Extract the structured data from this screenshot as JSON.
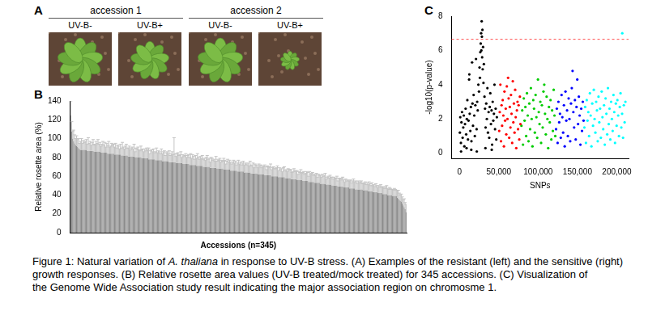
{
  "panel_a": {
    "title": "A",
    "groups": [
      {
        "label": "accession 1",
        "conditions": [
          "UV-B-",
          "UV-B+"
        ]
      },
      {
        "label": "accession 2",
        "conditions": [
          "UV-B-",
          "UV-B+"
        ]
      }
    ]
  },
  "chart_data": [
    {
      "type": "bar",
      "title": "B",
      "xlabel": "Accessions (n=345)",
      "ylabel": "Relative rosette area (%)",
      "color": "#8a8a8a",
      "grid": false,
      "tick_labels": "y",
      "ylim": [
        0,
        140
      ],
      "yticks": [
        0,
        20,
        40,
        60,
        80,
        100,
        120,
        140
      ],
      "values": [
        125,
        108,
        100,
        97,
        95,
        93,
        92,
        91,
        90,
        89,
        88,
        88,
        88,
        88,
        88,
        88,
        88,
        87,
        87,
        87,
        87,
        87,
        87,
        87,
        86,
        86,
        86,
        86,
        86,
        86,
        86,
        85,
        85,
        85,
        85,
        85,
        85,
        85,
        84,
        84,
        84,
        84,
        84,
        84,
        84,
        83,
        83,
        83,
        83,
        83,
        83,
        83,
        82,
        82,
        82,
        82,
        82,
        82,
        82,
        81,
        81,
        81,
        81,
        81,
        81,
        81,
        80,
        80,
        80,
        80,
        80,
        80,
        80,
        79,
        79,
        79,
        79,
        79,
        79,
        79,
        78,
        78,
        78,
        78,
        78,
        78,
        78,
        77,
        77,
        77,
        77,
        77,
        77,
        77,
        76,
        76,
        76,
        76,
        76,
        76,
        76,
        75,
        75,
        75,
        75,
        75,
        75,
        75,
        74,
        74,
        74,
        74,
        74,
        74,
        74,
        73,
        73,
        73,
        73,
        73,
        73,
        73,
        72,
        72,
        72,
        72,
        72,
        72,
        72,
        71,
        71,
        71,
        71,
        71,
        71,
        71,
        70,
        70,
        70,
        70,
        70,
        70,
        70,
        69,
        69,
        69,
        69,
        69,
        69,
        69,
        68,
        68,
        68,
        68,
        68,
        68,
        68,
        67,
        67,
        67,
        67,
        67,
        67,
        67,
        66,
        66,
        66,
        66,
        66,
        66,
        66,
        65,
        65,
        65,
        65,
        65,
        65,
        65,
        64,
        64,
        64,
        64,
        64,
        64,
        64,
        63,
        63,
        63,
        63,
        63,
        63,
        63,
        62,
        62,
        62,
        62,
        62,
        62,
        62,
        61,
        61,
        61,
        61,
        61,
        61,
        61,
        60,
        60,
        60,
        60,
        60,
        60,
        60,
        59,
        59,
        59,
        59,
        59,
        59,
        59,
        58,
        58,
        58,
        58,
        58,
        58,
        57,
        57,
        57,
        57,
        57,
        57,
        56,
        56,
        56,
        56,
        56,
        56,
        55,
        55,
        55,
        55,
        55,
        55,
        54,
        54,
        54,
        54,
        54,
        54,
        53,
        53,
        53,
        53,
        53,
        53,
        52,
        52,
        52,
        52,
        52,
        52,
        51,
        51,
        51,
        51,
        51,
        51,
        50,
        50,
        50,
        50,
        50,
        50,
        49,
        49,
        49,
        49,
        49,
        49,
        48,
        48,
        48,
        48,
        48,
        48,
        47,
        47,
        47,
        47,
        47,
        47,
        46,
        46,
        46,
        46,
        46,
        46,
        46,
        46,
        45,
        45,
        45,
        45,
        45,
        44,
        44,
        44,
        44,
        44,
        43,
        43,
        43,
        43,
        43,
        42,
        42,
        42,
        42,
        42,
        41,
        41,
        41,
        41,
        41,
        40,
        40,
        40,
        40,
        40,
        39,
        39,
        39,
        39,
        39,
        37,
        36,
        35,
        34,
        33,
        31,
        29,
        27,
        25,
        22
      ],
      "errors": [
        15,
        10,
        8,
        12,
        9,
        7,
        11,
        8,
        10,
        6,
        9,
        12,
        7,
        10,
        8,
        9,
        11,
        7,
        14,
        8,
        10,
        6,
        9,
        12,
        8,
        7,
        11,
        9,
        13,
        8,
        10,
        7,
        9,
        12,
        8,
        11,
        6,
        10,
        9,
        13,
        7,
        8,
        11,
        9,
        10,
        8,
        12,
        7,
        10,
        9,
        6,
        11,
        8,
        14,
        9,
        7,
        10,
        12,
        8,
        9,
        11,
        7,
        9,
        10,
        8,
        13,
        6,
        10,
        9,
        11,
        8,
        7,
        12,
        9,
        10,
        7,
        10,
        8,
        11,
        9,
        12,
        6,
        9,
        10,
        8,
        11,
        7,
        9,
        13,
        8,
        10,
        9,
        7,
        12,
        8,
        10,
        11,
        6,
        9,
        10,
        8,
        12,
        7,
        9,
        11,
        8,
        26,
        9,
        7,
        10,
        11,
        8,
        9,
        12,
        6,
        10,
        8,
        9,
        11,
        7,
        9,
        10,
        8,
        12,
        7,
        11,
        9,
        6,
        10,
        8,
        13,
        9,
        7,
        10,
        8,
        11,
        8,
        9,
        7,
        10,
        12,
        8,
        9,
        6,
        11,
        10,
        8,
        9,
        7,
        12,
        8,
        10,
        9,
        11,
        7,
        9,
        8,
        12,
        10,
        6,
        9,
        11,
        8,
        10,
        9,
        7,
        9,
        11,
        8,
        10,
        6,
        9,
        12,
        8,
        10,
        7,
        9,
        11,
        8,
        10,
        9,
        8,
        10,
        7,
        12,
        9,
        8,
        11,
        6,
        10,
        9,
        8,
        7,
        11,
        9,
        10,
        7,
        9,
        8,
        11,
        9,
        6,
        10,
        8,
        9,
        12,
        7,
        9,
        10,
        8,
        8,
        9,
        11,
        7,
        10,
        8,
        9,
        6,
        10,
        11,
        8,
        9,
        7,
        10,
        9,
        9,
        10,
        7,
        8,
        11,
        9,
        8,
        10,
        6,
        9,
        8,
        11,
        7,
        9,
        10,
        7,
        8,
        10,
        9,
        6,
        11,
        8,
        9,
        10,
        7,
        9,
        8,
        10,
        6,
        9,
        8,
        9,
        7,
        10,
        8,
        9,
        11,
        6,
        8,
        9,
        7,
        10,
        8,
        9,
        7,
        9,
        7,
        8,
        10,
        6,
        9,
        8,
        7,
        9,
        10,
        8,
        6,
        9,
        7,
        8,
        7,
        8,
        9,
        6,
        8,
        10,
        7,
        9,
        8,
        6,
        9,
        7,
        8,
        9,
        6,
        8,
        7,
        9,
        6,
        8,
        7,
        10,
        8,
        6,
        9,
        7,
        8,
        6,
        9,
        7,
        6,
        8,
        7,
        9,
        6,
        8,
        7,
        6,
        8,
        9,
        7,
        6,
        8,
        7,
        6,
        7,
        6,
        8,
        7,
        6,
        8,
        9,
        7,
        6,
        8,
        7,
        6,
        9,
        7,
        8
      ]
    },
    {
      "type": "scatter",
      "title": "C",
      "xlabel": "SNPs",
      "ylabel": "-log10(p-value)",
      "grid": false,
      "xlim": [
        -10000,
        215000
      ],
      "xticks": [
        0,
        {
          "value": 50000,
          "label": "50,000"
        },
        {
          "value": 100000,
          "label": "100,000"
        },
        {
          "value": 150000,
          "label": "150,000"
        },
        {
          "value": 200000,
          "label": "200,000"
        }
      ],
      "ylim": [
        -0.3,
        8
      ],
      "yticks": [
        0,
        2,
        4,
        6,
        8
      ],
      "threshold": 6.65,
      "series": [
        {
          "color": "#000000",
          "x": [
            500,
            1000,
            1800,
            2000,
            2500,
            3200,
            4000,
            4800,
            5500,
            6200,
            7000,
            7800,
            8500,
            9000,
            9300,
            10000,
            10800,
            11500,
            12200,
            12500,
            13000,
            13800,
            14500,
            15000,
            15200,
            16000,
            16500,
            17200,
            18000,
            18800,
            19500,
            20200,
            21000,
            21800,
            22000,
            22500,
            23200,
            24000,
            24800,
            25500,
            26000,
            26500,
            27000,
            27500,
            27800,
            28200,
            28500,
            28800,
            29200,
            29500,
            30000,
            30500,
            31000,
            31800,
            32500,
            33000,
            33200,
            34000,
            34800,
            35500,
            36200,
            37000,
            37800,
            38500,
            39200,
            40000,
            40800,
            41000,
            41500,
            42200,
            43000,
            43800,
            44500,
            45200,
            46000,
            46800,
            47500
          ],
          "values": [
            1.2,
            2.1,
            0.6,
            0.1,
            1.8,
            2.4,
            0.9,
            1.5,
            2.2,
            0.4,
            1.7,
            2.6,
            1.1,
            0.3,
            2.0,
            3.1,
            0.8,
            1.9,
            4.3,
            4.6,
            2.3,
            1.3,
            2.7,
            0.2,
            0.7,
            5.3,
            2.9,
            1.6,
            3.4,
            2.2,
            1.0,
            2.8,
            5.5,
            1.4,
            0.1,
            3.0,
            2.5,
            4.0,
            3.6,
            5.0,
            4.4,
            5.9,
            6.4,
            7.0,
            6.0,
            7.7,
            6.8,
            5.6,
            7.2,
            4.9,
            6.2,
            4.1,
            5.2,
            3.3,
            2.6,
            0.3,
            1.5,
            2.9,
            2.0,
            3.8,
            1.2,
            2.4,
            0.9,
            2.7,
            3.5,
            1.7,
            2.5,
            0.2,
            0.5,
            3.0,
            1.9,
            2.3,
            4.0,
            1.4,
            2.6,
            0.8,
            2.1
          ]
        },
        {
          "color": "#ff0000",
          "x": [
            50500,
            51200,
            52000,
            52800,
            53500,
            54200,
            55000,
            55800,
            56500,
            57200,
            58000,
            58800,
            59500,
            60200,
            61000,
            61800,
            62500,
            63200,
            64000,
            64800,
            65500,
            66200,
            67000,
            67800,
            68500,
            69200,
            70000,
            70800,
            71500,
            72200,
            73000,
            73800,
            74500,
            75200,
            76000,
            76800,
            77500
          ],
          "values": [
            1.3,
            2.4,
            4.0,
            0.7,
            2.8,
            1.6,
            3.1,
            2.2,
            0.4,
            3.6,
            1.9,
            2.6,
            1.1,
            3.9,
            2.0,
            4.4,
            3.2,
            0.9,
            2.7,
            1.5,
            3.4,
            2.3,
            0.6,
            4.2,
            1.8,
            2.9,
            1.2,
            3.7,
            2.1,
            0.3,
            2.5,
            3.0,
            1.4,
            2.8,
            0.8,
            3.3,
            1.7
          ]
        },
        {
          "color": "#00cc00",
          "x": [
            78800,
            79800,
            80800,
            81800,
            82800,
            83800,
            84800,
            85800,
            86800,
            87800,
            88800,
            89800,
            90800,
            91800,
            92800,
            93800,
            94800,
            95800,
            96800,
            97800,
            98800,
            99800,
            100800,
            101800,
            102800,
            103800,
            104800,
            105800,
            106800,
            107800,
            108800,
            109800,
            110800,
            111800,
            112800,
            113800,
            114800,
            115800,
            116800,
            117800,
            118800,
            119800,
            120800,
            121800
          ],
          "values": [
            1.6,
            2.5,
            0.5,
            3.2,
            1.9,
            2.7,
            1.0,
            3.5,
            2.2,
            0.7,
            2.9,
            1.4,
            3.8,
            2.0,
            0.4,
            3.1,
            2.6,
            1.2,
            3.4,
            2.1,
            0.9,
            4.3,
            2.4,
            1.7,
            3.0,
            0.6,
            2.8,
            1.5,
            3.6,
            4.0,
            2.3,
            1.1,
            3.3,
            2.0,
            0.3,
            2.7,
            1.8,
            3.1,
            0.8,
            2.5,
            1.3,
            3.7,
            2.2,
            1.0
          ]
        },
        {
          "color": "#0000ff",
          "x": [
            122800,
            123800,
            124800,
            125800,
            126800,
            127800,
            128800,
            129800,
            130800,
            131800,
            132800,
            133800,
            134800,
            135800,
            136800,
            137800,
            138800,
            139800,
            140800,
            141800,
            142800,
            143800,
            144800,
            145800,
            146800,
            147800,
            148800,
            149800,
            150800,
            151800,
            152800,
            153800,
            154800,
            155800,
            156800,
            157800
          ],
          "values": [
            1.4,
            2.6,
            0.6,
            3.0,
            1.8,
            2.3,
            0.9,
            3.4,
            2.1,
            1.2,
            2.8,
            0.4,
            3.6,
            1.9,
            2.5,
            1.0,
            3.2,
            2.0,
            0.7,
            2.9,
            3.8,
            4.8,
            2.4,
            1.5,
            3.1,
            0.8,
            2.7,
            4.3,
            1.7,
            3.3,
            2.2,
            0.5,
            2.6,
            1.3,
            3.0,
            1.9
          ]
        },
        {
          "color": "#00ffff",
          "x": [
            158800,
            159800,
            160800,
            161800,
            162800,
            163800,
            164800,
            165800,
            166800,
            167800,
            168800,
            169800,
            170800,
            171800,
            172800,
            173800,
            174800,
            175800,
            176800,
            177800,
            178800,
            179800,
            180800,
            181800,
            182800,
            183800,
            184800,
            185800,
            186800,
            187800,
            188800,
            189800,
            190800,
            191800,
            192800,
            193800,
            194800,
            195800,
            196800,
            197800,
            198800,
            199800,
            200800,
            201800,
            202800,
            203800,
            204800,
            205800,
            206800,
            207000,
            208000,
            209000,
            210000,
            211000
          ],
          "values": [
            1.5,
            2.7,
            0.6,
            3.1,
            1.9,
            2.4,
            1.0,
            3.5,
            2.2,
            0.4,
            2.9,
            1.6,
            3.7,
            2.0,
            1.2,
            3.0,
            2.5,
            0.7,
            3.3,
            1.8,
            2.6,
            0.9,
            3.6,
            2.1,
            1.4,
            2.8,
            0.5,
            3.2,
            2.3,
            1.1,
            3.8,
            1.7,
            2.6,
            0.8,
            3.0,
            2.0,
            1.3,
            3.4,
            2.4,
            0.6,
            2.9,
            1.6,
            3.1,
            2.2,
            1.0,
            2.7,
            3.5,
            1.5,
            2.3,
            7.0,
            0.9,
            2.8,
            1.8,
            3.0
          ]
        }
      ]
    }
  ],
  "caption": [
    [
      {
        "text": "Figure 1: Natural variation of "
      },
      {
        "text": "A. thaliana",
        "italic": true
      },
      {
        "text": " in response to UV-B stress. (A) Examples of the resistant (left) and the sensitive (right)"
      }
    ],
    [
      {
        "text": "growth responses. (B) Relative rosette area values (UV-B treated/mock treated) for 345 accessions. (C) Visualization of"
      }
    ],
    [
      {
        "text": "the Genome Wide Association study result indicating the major association region on chromosme 1."
      }
    ]
  ]
}
